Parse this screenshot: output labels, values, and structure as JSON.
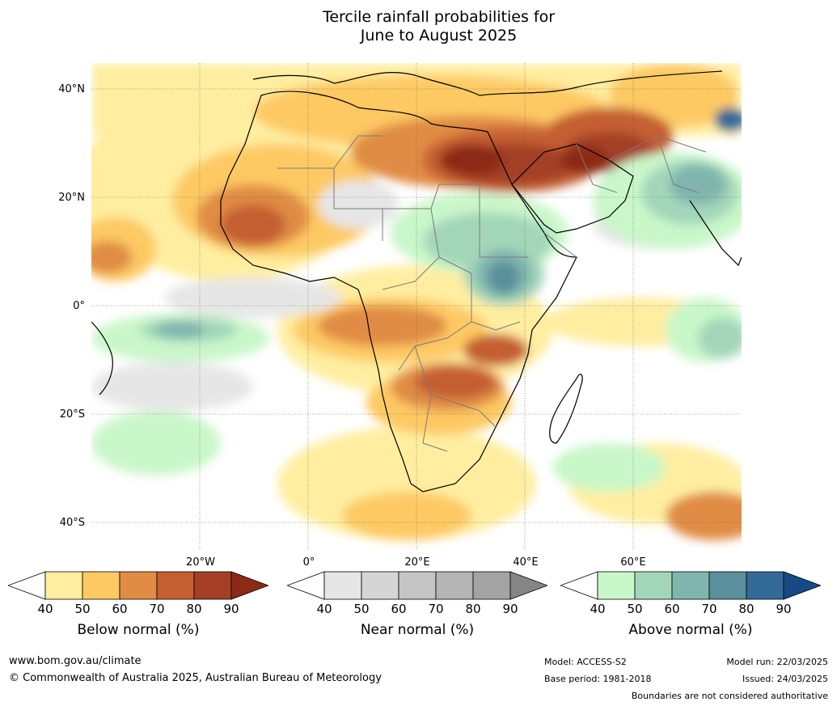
{
  "title_line1": "Tercile rainfall probabilities for",
  "title_line2": "June to August 2025",
  "map": {
    "lat_labels": [
      "40°N",
      "20°N",
      "0°",
      "20°S",
      "40°S"
    ],
    "lon_labels": [
      "20°W",
      "0°",
      "20°E",
      "40°E",
      "60°E"
    ]
  },
  "colorbars": [
    {
      "label": "Below normal (%)",
      "ticks": [
        "40",
        "50",
        "60",
        "70",
        "80",
        "90"
      ],
      "colors": [
        "#ffffff",
        "#ffeea0",
        "#fdc963",
        "#e08c45",
        "#c55f30",
        "#a43f25",
        "#8c2a17"
      ]
    },
    {
      "label": "Near normal (%)",
      "ticks": [
        "40",
        "50",
        "60",
        "70",
        "80",
        "90"
      ],
      "colors": [
        "#ffffff",
        "#e6e6e6",
        "#d5d5d5",
        "#c5c5c5",
        "#b5b5b5",
        "#a3a3a3",
        "#858585"
      ]
    },
    {
      "label": "Above normal (%)",
      "ticks": [
        "40",
        "50",
        "60",
        "70",
        "80",
        "90"
      ],
      "colors": [
        "#ffffff",
        "#c9f7c9",
        "#a3d6b9",
        "#7fb5ad",
        "#5b8f9c",
        "#336a98",
        "#174a85"
      ]
    }
  ],
  "footer": {
    "url": "www.bom.gov.au/climate",
    "copyright": "© Commonwealth of Australia 2025, Australian Bureau of Meteorology",
    "model": "Model: ACCESS-S2",
    "base_period": "Base period: 1981-2018",
    "model_run": "Model run: 22/03/2025",
    "issued": "Issued: 24/03/2025",
    "boundaries": "Boundaries are not considered authoritative"
  }
}
